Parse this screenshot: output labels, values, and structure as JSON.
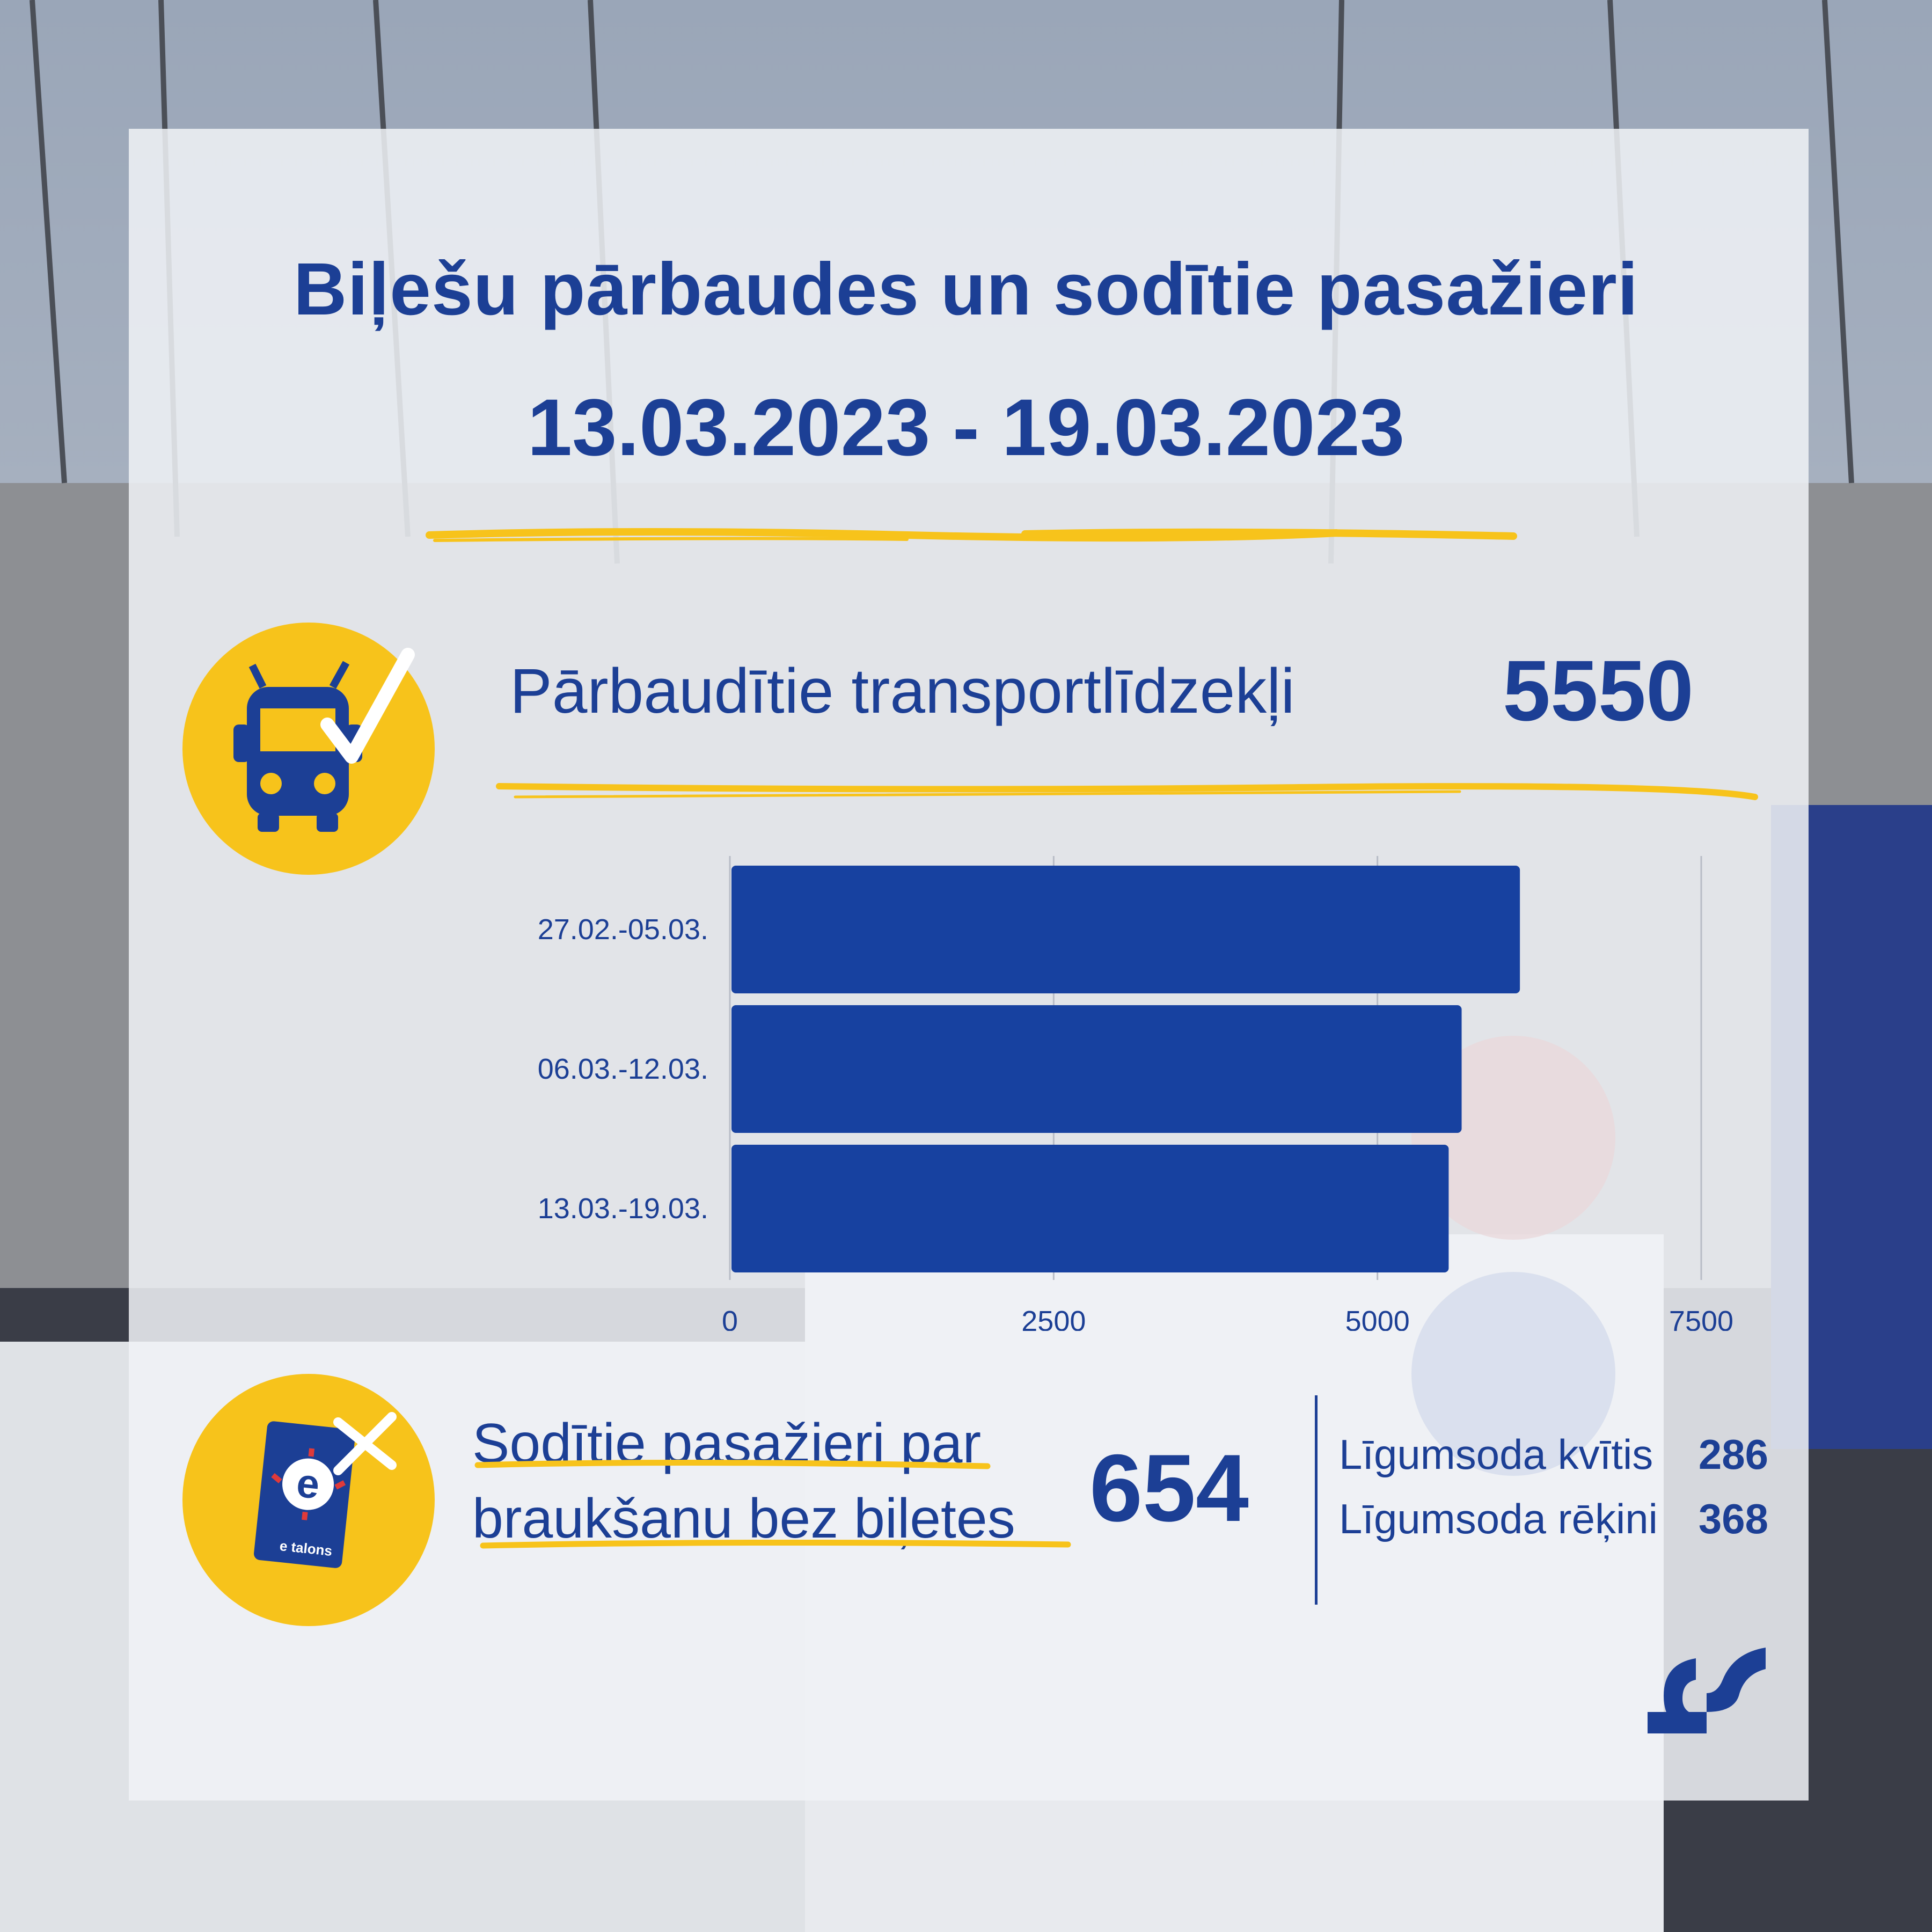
{
  "header": {
    "title": "Biļešu pārbaudes un sodītie pasažieri",
    "date_range": "13.03.2023 - 19.03.2023"
  },
  "inspected": {
    "label": "Pārbaudītie transportlīdzekļi",
    "value": "5550",
    "icon": "trolleybus-check-icon"
  },
  "fined": {
    "label_line1": "Sodītie pasažieri par",
    "label_line2": "braukšanu bez biļetes",
    "value": "654",
    "icon": "etalons-card-cross-icon",
    "card_text": "e talons",
    "breakdown": [
      {
        "label": "Līgumsoda kvītis",
        "value": "286"
      },
      {
        "label": "Līgumsoda rēķini",
        "value": "368"
      }
    ]
  },
  "colors": {
    "brand_blue": "#1c3f95",
    "accent_yellow": "#f7c31b",
    "bar_color": "#1741a0"
  },
  "chart_data": {
    "type": "bar",
    "orientation": "horizontal",
    "categories": [
      "27.02.-05.03.",
      "06.03.-12.03.",
      "13.03.-19.03."
    ],
    "values": [
      6100,
      5650,
      5550
    ],
    "xlim": [
      0,
      7500
    ],
    "xticks": [
      "0",
      "2500",
      "5000",
      "7500"
    ],
    "grid": true
  }
}
